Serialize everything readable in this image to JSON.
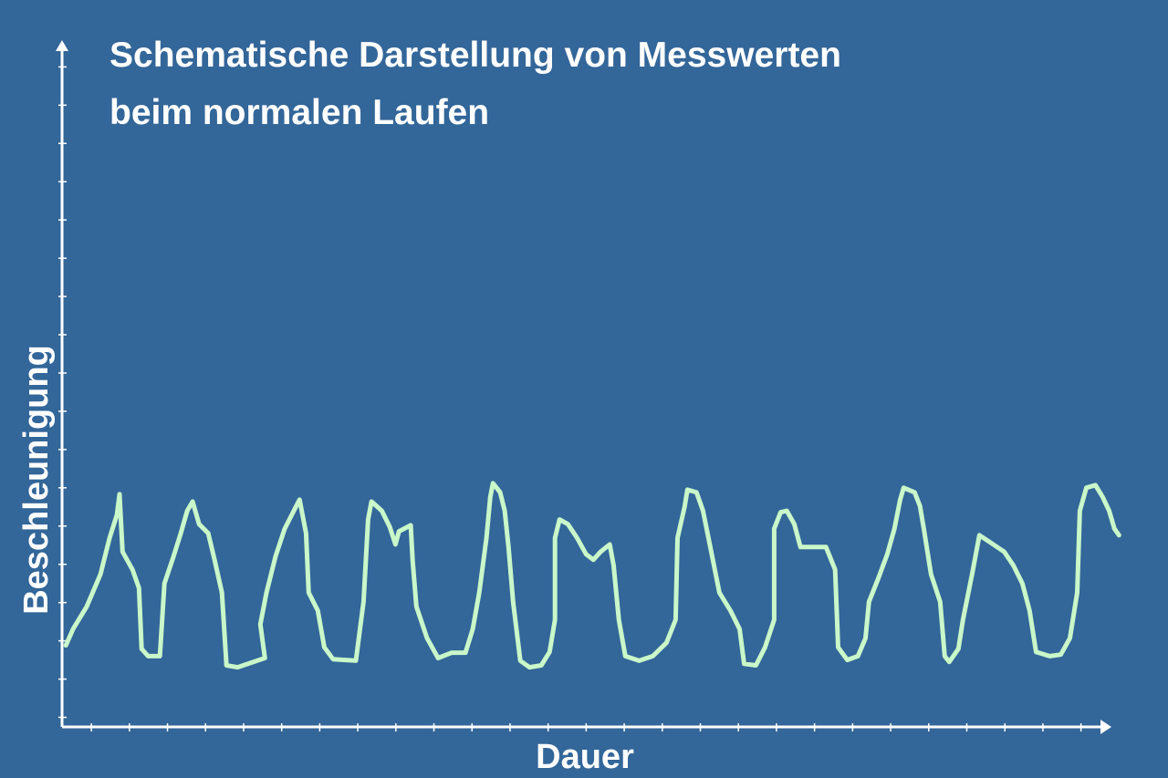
{
  "chart_data": {
    "type": "line",
    "title": [
      "Schematische Darstellung von Messwerten",
      "beim normalen Laufen"
    ],
    "x_label": "Dauer",
    "y_label": "Beschleunigung",
    "color": "#c9f7c9",
    "axis_color": "#ffffff",
    "xlim": [
      0.23,
      27.8
    ],
    "ylim": [
      -0.25,
      17.7
    ],
    "xticks": [
      1,
      2,
      3,
      4,
      5,
      6,
      7,
      8,
      9,
      10,
      11,
      12,
      13,
      14,
      15,
      16,
      17,
      18,
      19,
      20,
      21,
      22,
      23,
      24,
      25,
      26,
      27
    ],
    "yticks": [
      0,
      1,
      2,
      3,
      4,
      5,
      6,
      7,
      8,
      9,
      10,
      11,
      12,
      13,
      14,
      15,
      16,
      17
    ],
    "x": [
      0.33,
      0.52,
      0.88,
      1.24,
      1.48,
      1.67,
      1.74,
      1.82,
      2.08,
      2.25,
      2.32,
      2.49,
      2.8,
      2.92,
      3.16,
      3.35,
      3.52,
      3.66,
      3.83,
      4.07,
      4.24,
      4.43,
      4.55,
      4.84,
      5.56,
      5.44,
      5.6,
      5.84,
      6.08,
      6.32,
      6.47,
      6.64,
      6.71,
      6.95,
      7.12,
      7.35,
      7.95,
      8.15,
      8.27,
      8.36,
      8.63,
      8.84,
      8.99,
      9.08,
      9.39,
      9.44,
      9.54,
      9.82,
      10.11,
      10.47,
      10.83,
      11.02,
      11.19,
      11.38,
      11.48,
      11.55,
      11.74,
      11.86,
      11.96,
      12.08,
      12.27,
      12.51,
      12.82,
      13.04,
      13.18,
      13.18,
      13.3,
      13.52,
      13.76,
      14.0,
      14.19,
      14.38,
      14.62,
      14.72,
      14.86,
      15.03,
      15.39,
      15.75,
      16.11,
      16.35,
      16.4,
      16.59,
      16.66,
      16.9,
      17.07,
      17.26,
      17.5,
      17.79,
      18.03,
      18.15,
      18.46,
      18.7,
      18.94,
      18.94,
      19.11,
      19.27,
      19.47,
      19.63,
      19.9,
      20.3,
      20.54,
      20.62,
      20.86,
      21.14,
      21.34,
      21.43,
      21.67,
      21.91,
      22.1,
      22.25,
      22.34,
      22.63,
      22.77,
      22.87,
      23.06,
      23.3,
      23.42,
      23.54,
      23.78,
      23.9,
      24.14,
      24.33,
      24.62,
      24.98,
      25.22,
      25.46,
      25.65,
      25.82,
      26.18,
      26.47,
      26.71,
      26.9,
      26.97,
      27.14,
      27.38,
      27.57,
      27.74,
      27.88,
      28.0
    ],
    "values": [
      1.88,
      2.31,
      2.9,
      3.74,
      4.69,
      5.29,
      5.83,
      4.33,
      3.86,
      3.38,
      1.79,
      1.6,
      1.6,
      3.5,
      4.21,
      4.81,
      5.4,
      5.64,
      5.05,
      4.81,
      4.1,
      3.26,
      1.36,
      1.31,
      1.55,
      2.43,
      3.26,
      4.21,
      4.93,
      5.4,
      5.69,
      4.81,
      3.26,
      2.79,
      1.83,
      1.52,
      1.48,
      3.02,
      5.17,
      5.64,
      5.4,
      4.98,
      4.52,
      4.86,
      5.02,
      4.1,
      2.9,
      2.07,
      1.55,
      1.69,
      1.69,
      2.31,
      3.26,
      4.69,
      5.76,
      6.12,
      5.88,
      5.4,
      4.45,
      3.02,
      1.48,
      1.31,
      1.36,
      1.71,
      2.55,
      4.69,
      5.17,
      5.05,
      4.69,
      4.26,
      4.12,
      4.33,
      4.52,
      3.98,
      2.55,
      1.6,
      1.48,
      1.6,
      1.95,
      2.55,
      4.69,
      5.52,
      5.95,
      5.88,
      5.4,
      4.45,
      3.26,
      2.79,
      2.31,
      1.4,
      1.36,
      1.83,
      2.55,
      4.93,
      5.36,
      5.4,
      5.05,
      4.45,
      4.45,
      4.45,
      3.86,
      1.83,
      1.5,
      1.6,
      2.07,
      3.02,
      3.62,
      4.26,
      4.93,
      5.69,
      6.0,
      5.88,
      5.52,
      4.93,
      3.74,
      3.02,
      1.6,
      1.45,
      1.79,
      2.55,
      3.74,
      4.76,
      4.57,
      4.33,
      3.98,
      3.5,
      2.79,
      1.71,
      1.6,
      1.64,
      2.07,
      3.26,
      5.4,
      6.0,
      6.07,
      5.76,
      5.4,
      4.93,
      4.76
    ]
  }
}
